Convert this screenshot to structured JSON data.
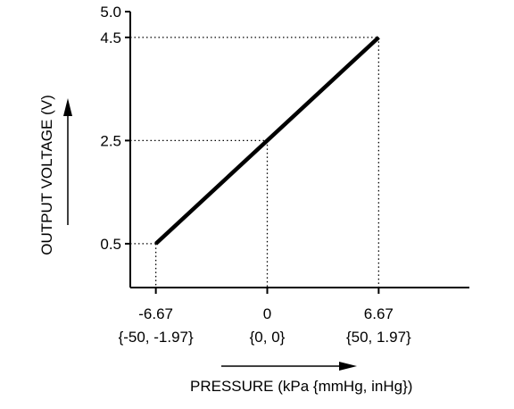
{
  "chart_data": {
    "type": "line",
    "xlabel": "PRESSURE (kPa {mmHg, inHg})",
    "ylabel": "OUTPUT VOLTAGE (V)",
    "x_ticks": [
      {
        "value": -6.67,
        "label": "-6.67",
        "sublabel": "{-50, -1.97}"
      },
      {
        "value": 0,
        "label": "0",
        "sublabel": "{0, 0}"
      },
      {
        "value": 6.67,
        "label": "6.67",
        "sublabel": "{50, 1.97}"
      }
    ],
    "y_ticks": [
      {
        "value": 0.5,
        "label": "0.5"
      },
      {
        "value": 2.5,
        "label": "2.5"
      },
      {
        "value": 4.5,
        "label": "4.5"
      },
      {
        "value": 5.0,
        "label": "5.0"
      }
    ],
    "series": [
      {
        "x": [
          -6.67,
          6.67
        ],
        "y": [
          0.5,
          4.5
        ]
      }
    ],
    "reference_lines": [
      {
        "x": -6.67,
        "y": 0.5
      },
      {
        "x": 0,
        "y": 2.5
      },
      {
        "x": 6.67,
        "y": 4.5
      }
    ],
    "xlim": [
      -8.2,
      12.1
    ],
    "ylim": [
      -0.35,
      5.0
    ],
    "grid": false,
    "colors": {
      "line": "#000000",
      "axis": "#000000",
      "guide": "#000000"
    }
  }
}
